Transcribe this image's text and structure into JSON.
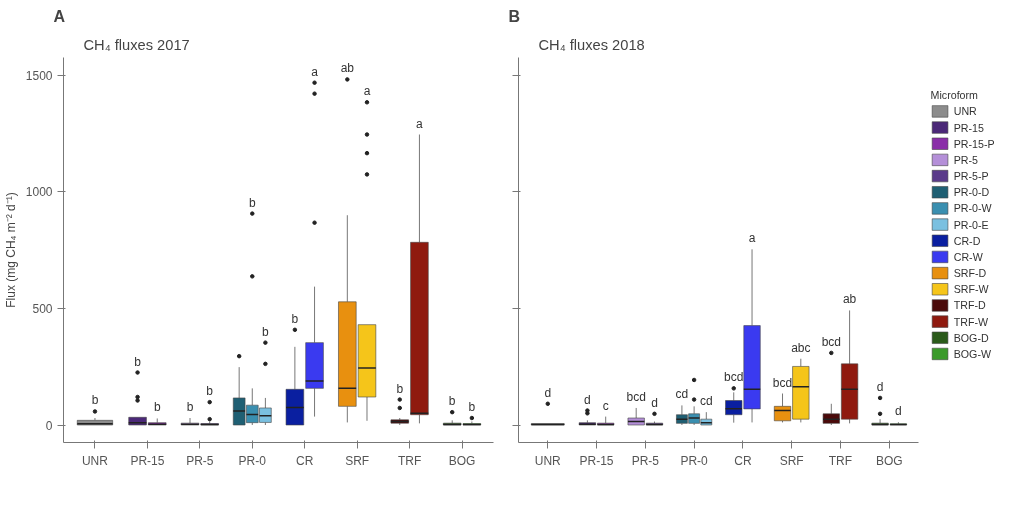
{
  "chart_data": [
    {
      "type": "box",
      "title": "CH₄ fluxes 2017",
      "annotations": [
        "A"
      ],
      "ylabel": "Flux (mg CH₄ m⁻² d⁻¹)",
      "categories": [
        "UNR",
        "PR-15",
        "PR-5",
        "PR-0",
        "CR",
        "SRF",
        "TRF",
        "BOG"
      ],
      "ylim": [
        -75,
        1575
      ],
      "yticks": [
        0,
        500,
        1000,
        1500
      ],
      "grid": false,
      "series": [
        {
          "color": "#8c8c8c",
          "boxes": [
            {
              "low": 0,
              "q1": 0,
              "median": 5,
              "q3": 20,
              "high": 30,
              "outliers": [
                58
              ]
            },
            null,
            null,
            null,
            null,
            null,
            null,
            null
          ],
          "value_labels": [
            "b",
            null,
            null,
            null,
            null,
            null,
            null,
            null
          ]
        },
        {
          "color": "#4b2878",
          "boxes": [
            null,
            {
              "low": 0,
              "q1": 0,
              "median": 10,
              "q3": 33,
              "high": 33,
              "outliers": [
                105,
                120,
                225
              ]
            },
            null,
            null,
            null,
            null,
            null,
            null
          ],
          "value_labels": [
            null,
            "b",
            null,
            null,
            null,
            null,
            null,
            null
          ]
        },
        {
          "color": "#8a2ea8",
          "boxes": [
            null,
            {
              "low": 0,
              "q1": 0,
              "median": 3,
              "q3": 10,
              "high": 28
            },
            null,
            null,
            null,
            null,
            null,
            null
          ],
          "value_labels": [
            null,
            "b",
            null,
            null,
            null,
            null,
            null,
            null
          ]
        },
        {
          "color": "#b48fd8",
          "boxes": [
            null,
            null,
            {
              "low": 0,
              "q1": 0,
              "median": 3,
              "q3": 8,
              "high": 30
            },
            null,
            null,
            null,
            null,
            null
          ],
          "value_labels": [
            null,
            null,
            "b",
            null,
            null,
            null,
            null,
            null
          ]
        },
        {
          "color": "#5a3a8a",
          "boxes": [
            null,
            null,
            {
              "low": 0,
              "q1": 0,
              "median": 2,
              "q3": 6,
              "high": 15,
              "outliers": [
                25,
                98
              ]
            },
            null,
            null,
            null,
            null,
            null
          ],
          "value_labels": [
            null,
            null,
            "b",
            null,
            null,
            null,
            null,
            null
          ]
        },
        {
          "color": "#1f5f73",
          "boxes": [
            null,
            null,
            null,
            {
              "low": 0,
              "q1": 0,
              "median": 60,
              "q3": 116,
              "high": 248,
              "outliers": [
                295
              ]
            },
            null,
            null,
            null,
            null
          ]
        },
        {
          "color": "#3a8fb0",
          "boxes": [
            null,
            null,
            null,
            {
              "low": 0,
              "q1": 10,
              "median": 45,
              "q3": 85,
              "high": 157,
              "outliers": [
                637,
                906
              ]
            },
            null,
            null,
            null,
            null
          ],
          "value_labels": [
            null,
            null,
            null,
            "b",
            null,
            null,
            null,
            null
          ]
        },
        {
          "color": "#7ac0e0",
          "boxes": [
            null,
            null,
            null,
            {
              "low": 0,
              "q1": 11,
              "median": 40,
              "q3": 73,
              "high": 116,
              "outliers": [
                262,
                353
              ]
            },
            null,
            null,
            null,
            null
          ],
          "value_labels": [
            null,
            null,
            null,
            "b",
            null,
            null,
            null,
            null
          ]
        },
        {
          "color": "#0a1fa0",
          "boxes": [
            null,
            null,
            null,
            null,
            {
              "low": 0,
              "q1": 0,
              "median": 75,
              "q3": 153,
              "high": 335,
              "outliers": [
                408
              ]
            },
            null,
            null,
            null
          ],
          "value_labels": [
            null,
            null,
            null,
            null,
            "b",
            null,
            null,
            null
          ]
        },
        {
          "color": "#3a3af0",
          "boxes": [
            null,
            null,
            null,
            null,
            {
              "low": 36,
              "q1": 157,
              "median": 189,
              "q3": 353,
              "high": 593,
              "outliers": [
                867,
                1420,
                1467
              ]
            },
            null,
            null,
            null
          ],
          "value_labels": [
            null,
            null,
            null,
            null,
            "a",
            null,
            null,
            null
          ]
        },
        {
          "color": "#e8900f",
          "boxes": [
            null,
            null,
            null,
            null,
            null,
            {
              "low": 11,
              "q1": 80,
              "median": 157,
              "q3": 528,
              "high": 899,
              "outliers": [
                1481
              ]
            },
            null,
            null
          ],
          "value_labels": [
            null,
            null,
            null,
            null,
            null,
            "ab",
            null,
            null
          ]
        },
        {
          "color": "#f5c51a",
          "boxes": [
            null,
            null,
            null,
            null,
            null,
            {
              "low": 18,
              "q1": 120,
              "median": 244,
              "q3": 430,
              "high": 430,
              "outliers": [
                1074,
                1165,
                1245,
                1383
              ]
            },
            null,
            null
          ],
          "value_labels": [
            null,
            null,
            null,
            null,
            null,
            "a",
            null,
            null
          ]
        },
        {
          "color": "#4a0a0a",
          "boxes": [
            null,
            null,
            null,
            null,
            null,
            null,
            {
              "low": 0,
              "q1": 8,
              "median": 15,
              "q3": 22,
              "high": 30,
              "outliers": [
                73,
                109
              ]
            },
            null
          ],
          "value_labels": [
            null,
            null,
            null,
            null,
            null,
            null,
            "b",
            null
          ]
        },
        {
          "color": "#8f1a0f",
          "boxes": [
            null,
            null,
            null,
            null,
            null,
            null,
            {
              "low": 7,
              "q1": 44,
              "median": 50,
              "q3": 783,
              "high": 1245
            },
            null
          ],
          "value_labels": [
            null,
            null,
            null,
            null,
            null,
            null,
            "a",
            null
          ]
        },
        {
          "color": "#2a5a1a",
          "boxes": [
            null,
            null,
            null,
            null,
            null,
            null,
            null,
            {
              "low": 0,
              "q1": 0,
              "median": 2,
              "q3": 8,
              "high": 20,
              "outliers": [
                55
              ]
            }
          ],
          "value_labels": [
            null,
            null,
            null,
            null,
            null,
            null,
            null,
            "b"
          ]
        },
        {
          "color": "#3a9a2a",
          "boxes": [
            null,
            null,
            null,
            null,
            null,
            null,
            null,
            {
              "low": 0,
              "q1": 0,
              "median": 2,
              "q3": 6,
              "high": 15,
              "outliers": [
                30
              ]
            }
          ],
          "value_labels": [
            null,
            null,
            null,
            null,
            null,
            null,
            null,
            "b"
          ]
        }
      ]
    },
    {
      "type": "box",
      "title": "CH₄ fluxes 2018",
      "annotations": [
        "B"
      ],
      "legend": "right",
      "legend_title": "Microform",
      "tick_labels": "x",
      "categories": [
        "UNR",
        "PR-15",
        "PR-5",
        "PR-0",
        "CR",
        "SRF",
        "TRF",
        "BOG"
      ],
      "ylim": [
        -75,
        1575
      ],
      "yticks": [
        0,
        500,
        1000,
        1500
      ],
      "grid": false,
      "series": [
        {
          "name": "UNR",
          "color": "#8c8c8c",
          "boxes": [
            {
              "low": 0,
              "q1": 0,
              "median": 2,
              "q3": 6,
              "high": 6,
              "outliers": [
                91
              ]
            },
            null,
            null,
            null,
            null,
            null,
            null,
            null
          ],
          "value_labels": [
            "d",
            null,
            null,
            null,
            null,
            null,
            null,
            null
          ]
        },
        {
          "name": "PR-15",
          "color": "#4b2878",
          "boxes": [
            null,
            {
              "low": 0,
              "q1": 0,
              "median": 3,
              "q3": 10,
              "high": 20,
              "outliers": [
                50,
                62
              ]
            },
            null,
            null,
            null,
            null,
            null,
            null
          ],
          "value_labels": [
            null,
            "d",
            null,
            null,
            null,
            null,
            null,
            null
          ]
        },
        {
          "name": "PR-15-P",
          "color": "#8a2ea8",
          "boxes": [
            null,
            {
              "low": 0,
              "q1": 0,
              "median": 2,
              "q3": 8,
              "high": 36
            },
            null,
            null,
            null,
            null,
            null,
            null
          ],
          "value_labels": [
            null,
            "c",
            null,
            null,
            null,
            null,
            null,
            null
          ]
        },
        {
          "name": "PR-5",
          "color": "#b48fd8",
          "boxes": [
            null,
            null,
            {
              "low": 0,
              "q1": 0,
              "median": 15,
              "q3": 30,
              "high": 73
            },
            null,
            null,
            null,
            null,
            null
          ],
          "value_labels": [
            null,
            null,
            "bcd",
            null,
            null,
            null,
            null,
            null
          ]
        },
        {
          "name": "PR-5-P",
          "color": "#5a3a8a",
          "boxes": [
            null,
            null,
            {
              "low": 0,
              "q1": 0,
              "median": 2,
              "q3": 8,
              "high": 15,
              "outliers": [
                48
              ]
            },
            null,
            null,
            null,
            null,
            null
          ],
          "value_labels": [
            null,
            null,
            "d",
            null,
            null,
            null,
            null,
            null
          ]
        },
        {
          "name": "PR-0-D",
          "color": "#1f5f73",
          "boxes": [
            null,
            null,
            null,
            {
              "low": 0,
              "q1": 7,
              "median": 25,
              "q3": 44,
              "high": 84
            },
            null,
            null,
            null,
            null
          ],
          "value_labels": [
            null,
            null,
            null,
            "cd",
            null,
            null,
            null,
            null
          ]
        },
        {
          "name": "PR-0-W",
          "color": "#3a8fb0",
          "boxes": [
            null,
            null,
            null,
            {
              "low": 0,
              "q1": 7,
              "median": 30,
              "q3": 48,
              "high": 80,
              "outliers": [
                109,
                193
              ]
            },
            null,
            null,
            null,
            null
          ]
        },
        {
          "name": "PR-0-E",
          "color": "#7ac0e0",
          "boxes": [
            null,
            null,
            null,
            {
              "low": 0,
              "q1": 0,
              "median": 10,
              "q3": 25,
              "high": 55
            },
            null,
            null,
            null,
            null
          ],
          "value_labels": [
            null,
            null,
            null,
            "cd",
            null,
            null,
            null,
            null
          ]
        },
        {
          "name": "CR-D",
          "color": "#0a1fa0",
          "boxes": [
            null,
            null,
            null,
            null,
            {
              "low": 10,
              "q1": 44,
              "median": 70,
              "q3": 105,
              "high": 140,
              "outliers": [
                157
              ]
            },
            null,
            null,
            null
          ],
          "value_labels": [
            null,
            null,
            null,
            null,
            "bcd",
            null,
            null,
            null
          ]
        },
        {
          "name": "CR-W",
          "color": "#3a3af0",
          "boxes": [
            null,
            null,
            null,
            null,
            {
              "low": 11,
              "q1": 69,
              "median": 153,
              "q3": 426,
              "high": 753
            },
            null,
            null,
            null
          ],
          "value_labels": [
            null,
            null,
            null,
            null,
            "a",
            null,
            null,
            null
          ]
        },
        {
          "name": "SRF-D",
          "color": "#e8900f",
          "boxes": [
            null,
            null,
            null,
            null,
            null,
            {
              "low": 11,
              "q1": 18,
              "median": 62,
              "q3": 80,
              "high": 135
            },
            null,
            null
          ],
          "value_labels": [
            null,
            null,
            null,
            null,
            null,
            "bcd",
            null,
            null
          ]
        },
        {
          "name": "SRF-W",
          "color": "#f5c51a",
          "boxes": [
            null,
            null,
            null,
            null,
            null,
            {
              "low": 11,
              "q1": 25,
              "median": 164,
              "q3": 251,
              "high": 284
            },
            null,
            null
          ],
          "value_labels": [
            null,
            null,
            null,
            null,
            null,
            "abc",
            null,
            null
          ]
        },
        {
          "name": "TRF-D",
          "color": "#4a0a0a",
          "boxes": [
            null,
            null,
            null,
            null,
            null,
            null,
            {
              "low": 0,
              "q1": 7,
              "median": 25,
              "q3": 48,
              "high": 91,
              "outliers": [
                309
              ]
            },
            null
          ],
          "value_labels": [
            null,
            null,
            null,
            null,
            null,
            null,
            "bcd",
            null
          ]
        },
        {
          "name": "TRF-W",
          "color": "#8f1a0f",
          "boxes": [
            null,
            null,
            null,
            null,
            null,
            null,
            {
              "low": 7,
              "q1": 25,
              "median": 153,
              "q3": 262,
              "high": 491
            },
            null
          ],
          "value_labels": [
            null,
            null,
            null,
            null,
            null,
            null,
            "ab",
            null
          ]
        },
        {
          "name": "BOG-D",
          "color": "#2a5a1a",
          "boxes": [
            null,
            null,
            null,
            null,
            null,
            null,
            null,
            {
              "low": 0,
              "q1": 0,
              "median": 2,
              "q3": 8,
              "high": 25,
              "outliers": [
                48,
                116
              ]
            }
          ],
          "value_labels": [
            null,
            null,
            null,
            null,
            null,
            null,
            null,
            "d"
          ]
        },
        {
          "name": "BOG-W",
          "color": "#3a9a2a",
          "boxes": [
            null,
            null,
            null,
            null,
            null,
            null,
            null,
            {
              "low": 0,
              "q1": 0,
              "median": 2,
              "q3": 5,
              "high": 12
            }
          ],
          "value_labels": [
            null,
            null,
            null,
            null,
            null,
            null,
            null,
            "d"
          ]
        }
      ]
    }
  ]
}
